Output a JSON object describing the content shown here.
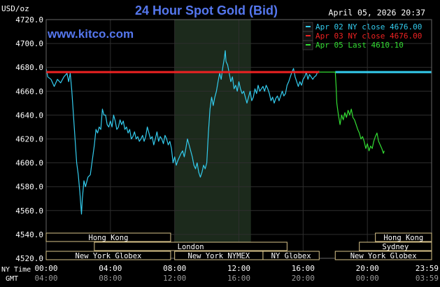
{
  "header": {
    "unit": "USD/oz",
    "title": "24 Hour Spot Gold (Bid)",
    "datetime": "April 05, 2026 20:37",
    "site": "www.kitco.com"
  },
  "legend": [
    {
      "text": "Apr 02 NY close 4676.00",
      "color": "#33ccee"
    },
    {
      "text": "Apr 03 NY close 4676.00",
      "color": "#ee2222"
    },
    {
      "text": "Apr 05 Last 4610.10",
      "color": "#33dd33"
    }
  ],
  "colors": {
    "background": "#000000",
    "plot_background": "#000000",
    "highlight_band": "#1c2a1c",
    "grid": "#2e2e2e",
    "axis_text": "#ffffff",
    "title": "#5577ee",
    "site": "#5577ee",
    "series_prev": "#33ccee",
    "series_close": "#ee2222",
    "series_today": "#33dd33",
    "session_box": "#d8c38a"
  },
  "axis_labels": {
    "ny_time": "NY Time",
    "gmt": "GMT"
  },
  "sessions": [
    {
      "label": "Hong Kong",
      "start": 0,
      "end": 7.75,
      "row": 0
    },
    {
      "label": "London",
      "start": 3,
      "end": 15,
      "row": 1
    },
    {
      "label": "New York Globex",
      "start": 0,
      "end": 7.75,
      "row": 2
    },
    {
      "label": "New York NYMEX",
      "start": 8,
      "end": 13.5,
      "row": 2
    },
    {
      "label": "NY Globex",
      "start": 13.5,
      "end": 17,
      "row": 2
    },
    {
      "label": "Hong Kong",
      "start": 20.5,
      "end": 24,
      "row": 0
    },
    {
      "label": "Sydney",
      "start": 19.5,
      "end": 24,
      "row": 1
    },
    {
      "label": "New York Globex",
      "start": 18,
      "end": 24,
      "row": 2
    }
  ],
  "chart_data": {
    "type": "line",
    "title": "24 Hour Spot Gold (Bid)",
    "ylabel": "USD/oz",
    "xlabel": "NY Time",
    "ylim": [
      4520,
      4720
    ],
    "xlim": [
      0,
      24
    ],
    "yticks": [
      "4720.0",
      "4700.0",
      "4680.0",
      "4660.0",
      "4640.0",
      "4620.0",
      "4600.0",
      "4580.0",
      "4560.0",
      "4540.0",
      "4520.0"
    ],
    "xticks_ny": [
      "00:00",
      "04:00",
      "08:00",
      "12:00",
      "16:00",
      "20:00",
      "23:59"
    ],
    "xticks_gmt": [
      "04:00",
      "08:00",
      "12:00",
      "16:00",
      "20:00",
      "00:00",
      "03:59"
    ],
    "highlight_band_hours": [
      8,
      12.75
    ],
    "grid": true,
    "series": [
      {
        "name": "Apr 02",
        "color": "#33ccee",
        "points": [
          [
            0.0,
            4679
          ],
          [
            0.1,
            4672
          ],
          [
            0.3,
            4670
          ],
          [
            0.5,
            4664
          ],
          [
            0.7,
            4670
          ],
          [
            0.9,
            4667
          ],
          [
            1.1,
            4672
          ],
          [
            1.3,
            4675
          ],
          [
            1.4,
            4668
          ],
          [
            1.5,
            4675
          ],
          [
            1.6,
            4660
          ],
          [
            1.7,
            4640
          ],
          [
            1.8,
            4620
          ],
          [
            1.9,
            4600
          ],
          [
            2.0,
            4590
          ],
          [
            2.1,
            4575
          ],
          [
            2.2,
            4557
          ],
          [
            2.25,
            4570
          ],
          [
            2.35,
            4585
          ],
          [
            2.45,
            4580
          ],
          [
            2.6,
            4588
          ],
          [
            2.75,
            4590
          ],
          [
            2.9,
            4605
          ],
          [
            3.0,
            4615
          ],
          [
            3.1,
            4628
          ],
          [
            3.2,
            4625
          ],
          [
            3.3,
            4630
          ],
          [
            3.4,
            4628
          ],
          [
            3.5,
            4645
          ],
          [
            3.6,
            4640
          ],
          [
            3.7,
            4640
          ],
          [
            3.8,
            4632
          ],
          [
            3.9,
            4630
          ],
          [
            4.0,
            4635
          ],
          [
            4.1,
            4630
          ],
          [
            4.2,
            4640
          ],
          [
            4.3,
            4635
          ],
          [
            4.4,
            4628
          ],
          [
            4.5,
            4630
          ],
          [
            4.6,
            4636
          ],
          [
            4.7,
            4632
          ],
          [
            4.8,
            4635
          ],
          [
            4.9,
            4628
          ],
          [
            5.0,
            4630
          ],
          [
            5.1,
            4625
          ],
          [
            5.2,
            4628
          ],
          [
            5.3,
            4620
          ],
          [
            5.4,
            4622
          ],
          [
            5.5,
            4626
          ],
          [
            5.6,
            4620
          ],
          [
            5.7,
            4622
          ],
          [
            5.8,
            4618
          ],
          [
            5.9,
            4620
          ],
          [
            6.0,
            4623
          ],
          [
            6.1,
            4618
          ],
          [
            6.2,
            4622
          ],
          [
            6.3,
            4630
          ],
          [
            6.4,
            4625
          ],
          [
            6.5,
            4620
          ],
          [
            6.6,
            4622
          ],
          [
            6.7,
            4615
          ],
          [
            6.8,
            4620
          ],
          [
            6.9,
            4626
          ],
          [
            7.0,
            4618
          ],
          [
            7.1,
            4622
          ],
          [
            7.2,
            4620
          ],
          [
            7.3,
            4616
          ],
          [
            7.4,
            4623
          ],
          [
            7.5,
            4620
          ],
          [
            7.6,
            4615
          ],
          [
            7.7,
            4618
          ],
          [
            7.8,
            4612
          ],
          [
            7.9,
            4600
          ],
          [
            8.0,
            4605
          ],
          [
            8.1,
            4598
          ],
          [
            8.2,
            4602
          ],
          [
            8.3,
            4605
          ],
          [
            8.4,
            4608
          ],
          [
            8.5,
            4610
          ],
          [
            8.6,
            4605
          ],
          [
            8.7,
            4612
          ],
          [
            8.8,
            4620
          ],
          [
            8.9,
            4615
          ],
          [
            9.0,
            4610
          ],
          [
            9.1,
            4605
          ],
          [
            9.2,
            4598
          ],
          [
            9.3,
            4595
          ],
          [
            9.4,
            4600
          ],
          [
            9.5,
            4592
          ],
          [
            9.6,
            4588
          ],
          [
            9.7,
            4592
          ],
          [
            9.8,
            4598
          ],
          [
            9.9,
            4595
          ],
          [
            10.0,
            4600
          ],
          [
            10.1,
            4625
          ],
          [
            10.2,
            4645
          ],
          [
            10.3,
            4655
          ],
          [
            10.4,
            4648
          ],
          [
            10.5,
            4655
          ],
          [
            10.6,
            4660
          ],
          [
            10.7,
            4668
          ],
          [
            10.8,
            4675
          ],
          [
            10.9,
            4670
          ],
          [
            11.0,
            4680
          ],
          [
            11.1,
            4688
          ],
          [
            11.15,
            4694
          ],
          [
            11.2,
            4685
          ],
          [
            11.3,
            4682
          ],
          [
            11.4,
            4675
          ],
          [
            11.5,
            4668
          ],
          [
            11.6,
            4672
          ],
          [
            11.7,
            4662
          ],
          [
            11.8,
            4665
          ],
          [
            11.9,
            4660
          ],
          [
            12.0,
            4668
          ],
          [
            12.1,
            4662
          ],
          [
            12.2,
            4658
          ],
          [
            12.3,
            4660
          ],
          [
            12.4,
            4655
          ],
          [
            12.5,
            4650
          ],
          [
            12.6,
            4655
          ],
          [
            12.7,
            4660
          ],
          [
            12.8,
            4652
          ],
          [
            12.9,
            4655
          ],
          [
            13.0,
            4662
          ],
          [
            13.1,
            4658
          ],
          [
            13.2,
            4665
          ],
          [
            13.3,
            4660
          ],
          [
            13.4,
            4662
          ],
          [
            13.5,
            4664
          ],
          [
            13.6,
            4660
          ],
          [
            13.7,
            4665
          ],
          [
            13.8,
            4662
          ],
          [
            13.9,
            4658
          ],
          [
            14.0,
            4652
          ],
          [
            14.1,
            4655
          ],
          [
            14.2,
            4650
          ],
          [
            14.3,
            4654
          ],
          [
            14.4,
            4656
          ],
          [
            14.5,
            4652
          ],
          [
            14.6,
            4656
          ],
          [
            14.7,
            4660
          ],
          [
            14.8,
            4656
          ],
          [
            14.9,
            4658
          ],
          [
            15.0,
            4665
          ],
          [
            15.1,
            4668
          ],
          [
            15.2,
            4672
          ],
          [
            15.3,
            4676
          ],
          [
            15.4,
            4679
          ],
          [
            15.5,
            4672
          ],
          [
            15.6,
            4668
          ],
          [
            15.7,
            4664
          ],
          [
            15.8,
            4668
          ],
          [
            15.9,
            4665
          ],
          [
            16.0,
            4670
          ],
          [
            16.1,
            4672
          ],
          [
            16.2,
            4676
          ],
          [
            16.3,
            4670
          ],
          [
            16.4,
            4674
          ],
          [
            16.5,
            4672
          ],
          [
            16.6,
            4670
          ],
          [
            16.7,
            4672
          ],
          [
            16.8,
            4673
          ],
          [
            16.9,
            4676
          ],
          [
            17.0,
            4677
          ]
        ]
      },
      {
        "name": "Apr 03",
        "color": "#ee2222",
        "points": [
          [
            0.0,
            4676
          ],
          [
            17.0,
            4676
          ]
        ]
      },
      {
        "name": "Apr 02 NY close (carried)",
        "color": "#33ccee",
        "points": [
          [
            18.0,
            4676
          ],
          [
            24.0,
            4676
          ]
        ]
      },
      {
        "name": "Apr 05",
        "color": "#33dd33",
        "points": [
          [
            17.0,
            4676
          ],
          [
            18.0,
            4676
          ],
          [
            18.05,
            4665
          ],
          [
            18.1,
            4650
          ],
          [
            18.2,
            4640
          ],
          [
            18.3,
            4632
          ],
          [
            18.4,
            4640
          ],
          [
            18.5,
            4636
          ],
          [
            18.6,
            4642
          ],
          [
            18.7,
            4638
          ],
          [
            18.8,
            4644
          ],
          [
            18.9,
            4640
          ],
          [
            19.0,
            4645
          ],
          [
            19.1,
            4638
          ],
          [
            19.2,
            4636
          ],
          [
            19.3,
            4632
          ],
          [
            19.4,
            4628
          ],
          [
            19.5,
            4625
          ],
          [
            19.6,
            4620
          ],
          [
            19.7,
            4622
          ],
          [
            19.8,
            4618
          ],
          [
            19.9,
            4612
          ],
          [
            20.0,
            4616
          ],
          [
            20.1,
            4610
          ],
          [
            20.2,
            4614
          ],
          [
            20.3,
            4612
          ],
          [
            20.4,
            4618
          ],
          [
            20.5,
            4622
          ],
          [
            20.6,
            4625
          ],
          [
            20.7,
            4618
          ],
          [
            20.8,
            4615
          ],
          [
            20.9,
            4612
          ],
          [
            21.0,
            4608
          ],
          [
            21.05,
            4610
          ]
        ]
      }
    ]
  }
}
